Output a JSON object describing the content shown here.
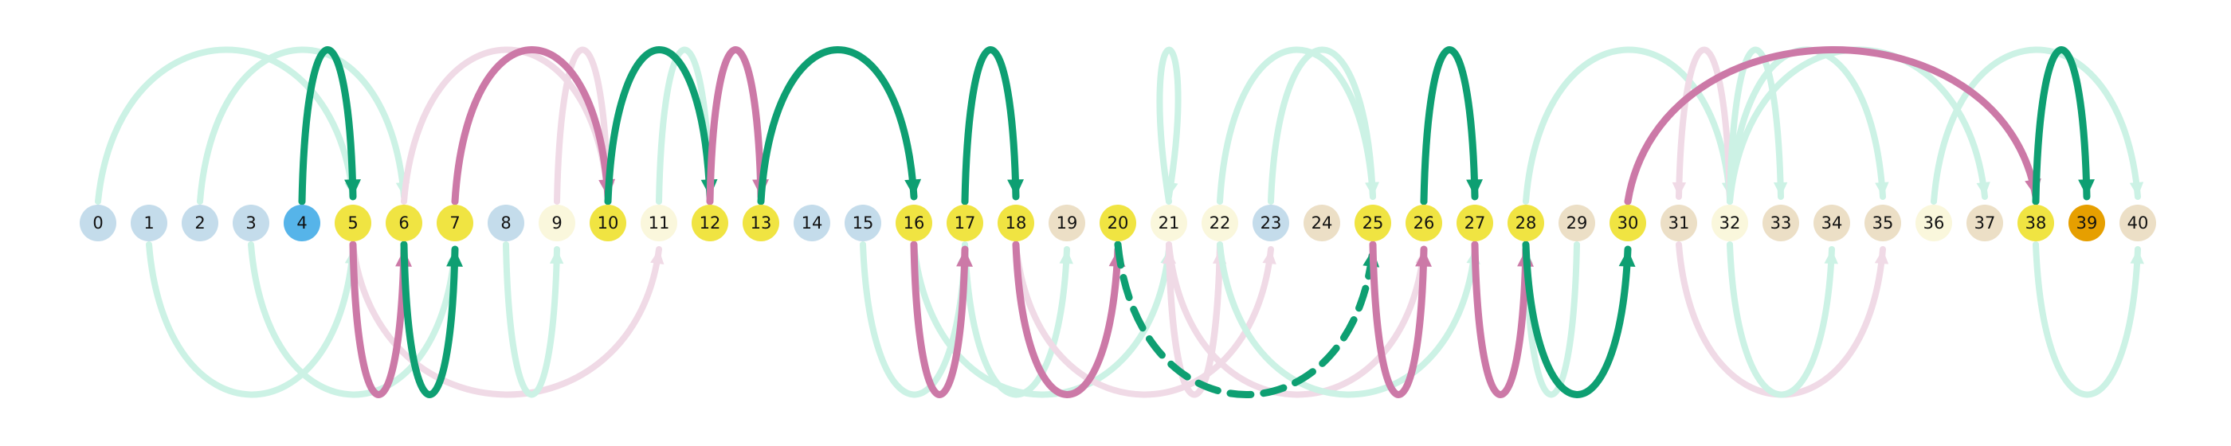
{
  "colors": {
    "green": "#0e9f72",
    "pink": "#cc79a7",
    "light_green": "#ccf2e5",
    "light_pink": "#f0dae6",
    "node_blue": "#c4dceb",
    "node_yellow": "#f0e442",
    "node_cream": "#faf7dc",
    "node_tan": "#ecdfc6",
    "node_sky": "#56b4e9",
    "node_orange": "#e69f00"
  },
  "nodes": [
    {
      "label": "0",
      "fill": "node_blue"
    },
    {
      "label": "1",
      "fill": "node_blue"
    },
    {
      "label": "2",
      "fill": "node_blue"
    },
    {
      "label": "3",
      "fill": "node_blue"
    },
    {
      "label": "4",
      "fill": "node_sky"
    },
    {
      "label": "5",
      "fill": "node_yellow"
    },
    {
      "label": "6",
      "fill": "node_yellow"
    },
    {
      "label": "7",
      "fill": "node_yellow"
    },
    {
      "label": "8",
      "fill": "node_blue"
    },
    {
      "label": "9",
      "fill": "node_cream"
    },
    {
      "label": "10",
      "fill": "node_yellow"
    },
    {
      "label": "11",
      "fill": "node_cream"
    },
    {
      "label": "12",
      "fill": "node_yellow"
    },
    {
      "label": "13",
      "fill": "node_yellow"
    },
    {
      "label": "14",
      "fill": "node_blue"
    },
    {
      "label": "15",
      "fill": "node_blue"
    },
    {
      "label": "16",
      "fill": "node_yellow"
    },
    {
      "label": "17",
      "fill": "node_yellow"
    },
    {
      "label": "18",
      "fill": "node_yellow"
    },
    {
      "label": "19",
      "fill": "node_tan"
    },
    {
      "label": "20",
      "fill": "node_yellow"
    },
    {
      "label": "21",
      "fill": "node_cream"
    },
    {
      "label": "22",
      "fill": "node_cream"
    },
    {
      "label": "23",
      "fill": "node_blue"
    },
    {
      "label": "24",
      "fill": "node_tan"
    },
    {
      "label": "25",
      "fill": "node_yellow"
    },
    {
      "label": "26",
      "fill": "node_yellow"
    },
    {
      "label": "27",
      "fill": "node_yellow"
    },
    {
      "label": "28",
      "fill": "node_yellow"
    },
    {
      "label": "29",
      "fill": "node_tan"
    },
    {
      "label": "30",
      "fill": "node_yellow"
    },
    {
      "label": "31",
      "fill": "node_tan"
    },
    {
      "label": "32",
      "fill": "node_cream"
    },
    {
      "label": "33",
      "fill": "node_tan"
    },
    {
      "label": "34",
      "fill": "node_tan"
    },
    {
      "label": "35",
      "fill": "node_tan"
    },
    {
      "label": "36",
      "fill": "node_cream"
    },
    {
      "label": "37",
      "fill": "node_tan"
    },
    {
      "label": "38",
      "fill": "node_yellow"
    },
    {
      "label": "39",
      "fill": "node_orange"
    },
    {
      "label": "40",
      "fill": "node_tan"
    }
  ],
  "edges": [
    {
      "from": 0,
      "to": 5,
      "side": "above",
      "style": "faint",
      "color": "light_green"
    },
    {
      "from": 2,
      "to": 6,
      "side": "above",
      "style": "faint",
      "color": "light_green"
    },
    {
      "from": 1,
      "to": 5,
      "side": "below",
      "style": "faint",
      "color": "light_green"
    },
    {
      "from": 3,
      "to": 7,
      "side": "below",
      "style": "faint",
      "color": "light_green"
    },
    {
      "from": 5,
      "to": 11,
      "side": "below",
      "style": "faint",
      "color": "light_pink"
    },
    {
      "from": 6,
      "to": 10,
      "side": "above",
      "style": "faint",
      "color": "light_pink"
    },
    {
      "from": 9,
      "to": 10,
      "side": "above",
      "style": "faint",
      "color": "light_pink"
    },
    {
      "from": 8,
      "to": 9,
      "side": "below",
      "style": "faint",
      "color": "light_green"
    },
    {
      "from": 11,
      "to": 12,
      "side": "above",
      "style": "faint",
      "color": "light_green"
    },
    {
      "from": 15,
      "to": 17,
      "side": "below",
      "style": "faint",
      "color": "light_green"
    },
    {
      "from": 16,
      "to": 21,
      "side": "below",
      "style": "faint",
      "color": "light_green"
    },
    {
      "from": 17,
      "to": 19,
      "side": "below",
      "style": "faint",
      "color": "light_green"
    },
    {
      "from": 18,
      "to": 23,
      "side": "below",
      "style": "faint",
      "color": "light_pink"
    },
    {
      "from": 21,
      "to": 22,
      "side": "below",
      "style": "faint",
      "color": "light_pink"
    },
    {
      "from": 21,
      "to": 26,
      "side": "below",
      "style": "faint",
      "color": "light_pink"
    },
    {
      "from": 22,
      "to": 21,
      "side": "below",
      "style": "faint",
      "color": "light_pink"
    },
    {
      "from": 21,
      "to": 21,
      "side": "above",
      "style": "faint",
      "color": "light_green"
    },
    {
      "from": 22,
      "to": 25,
      "side": "above",
      "style": "faint",
      "color": "light_green"
    },
    {
      "from": 23,
      "to": 25,
      "side": "above",
      "style": "faint",
      "color": "light_green"
    },
    {
      "from": 22,
      "to": 27,
      "side": "below",
      "style": "faint",
      "color": "light_green"
    },
    {
      "from": 29,
      "to": 28,
      "side": "below",
      "style": "faint",
      "color": "light_green"
    },
    {
      "from": 28,
      "to": 32,
      "side": "above",
      "style": "faint",
      "color": "light_green"
    },
    {
      "from": 32,
      "to": 31,
      "side": "above",
      "style": "faint",
      "color": "light_pink"
    },
    {
      "from": 31,
      "to": 35,
      "side": "below",
      "style": "faint",
      "color": "light_pink"
    },
    {
      "from": 32,
      "to": 33,
      "side": "above",
      "style": "faint",
      "color": "light_green"
    },
    {
      "from": 32,
      "to": 35,
      "side": "above",
      "style": "faint",
      "color": "light_green"
    },
    {
      "from": 32,
      "to": 34,
      "side": "below",
      "style": "faint",
      "color": "light_green"
    },
    {
      "from": 32,
      "to": 37,
      "side": "above",
      "style": "faint",
      "color": "light_green"
    },
    {
      "from": 36,
      "to": 40,
      "side": "above",
      "style": "faint",
      "color": "light_green"
    },
    {
      "from": 38,
      "to": 40,
      "side": "below",
      "style": "faint",
      "color": "light_green"
    },
    {
      "from": 4,
      "to": 5,
      "side": "above",
      "style": "bold",
      "color": "green"
    },
    {
      "from": 5,
      "to": 6,
      "side": "below",
      "style": "bold",
      "color": "pink"
    },
    {
      "from": 6,
      "to": 7,
      "side": "below",
      "style": "bold",
      "color": "green"
    },
    {
      "from": 7,
      "to": 10,
      "side": "above",
      "style": "bold",
      "color": "pink"
    },
    {
      "from": 10,
      "to": 12,
      "side": "above",
      "style": "bold",
      "color": "green"
    },
    {
      "from": 12,
      "to": 13,
      "side": "above",
      "style": "bold",
      "color": "pink"
    },
    {
      "from": 13,
      "to": 16,
      "side": "above",
      "style": "bold",
      "color": "green"
    },
    {
      "from": 16,
      "to": 17,
      "side": "below",
      "style": "bold",
      "color": "pink"
    },
    {
      "from": 17,
      "to": 18,
      "side": "above",
      "style": "bold",
      "color": "green"
    },
    {
      "from": 18,
      "to": 20,
      "side": "below",
      "style": "bold",
      "color": "pink"
    },
    {
      "from": 20,
      "to": 25,
      "side": "below",
      "style": "dashed",
      "color": "green"
    },
    {
      "from": 25,
      "to": 26,
      "side": "below",
      "style": "bold",
      "color": "pink"
    },
    {
      "from": 26,
      "to": 27,
      "side": "above",
      "style": "bold",
      "color": "green"
    },
    {
      "from": 27,
      "to": 28,
      "side": "below",
      "style": "bold",
      "color": "pink"
    },
    {
      "from": 28,
      "to": 30,
      "side": "below",
      "style": "bold",
      "color": "green"
    },
    {
      "from": 30,
      "to": 38,
      "side": "above",
      "style": "bold",
      "color": "pink"
    },
    {
      "from": 38,
      "to": 39,
      "side": "above",
      "style": "bold",
      "color": "green"
    }
  ]
}
